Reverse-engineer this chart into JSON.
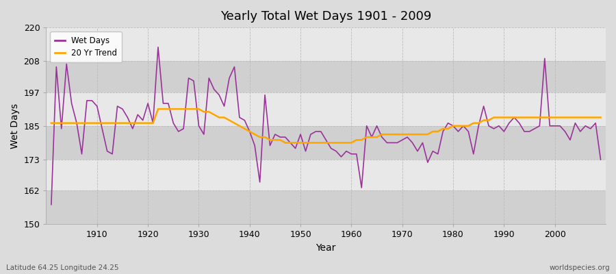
{
  "title": "Yearly Total Wet Days 1901 - 2009",
  "xlabel": "Year",
  "ylabel": "Wet Days",
  "lat_lon_label": "Latitude 64.25 Longitude 24.25",
  "watermark": "worldspecies.org",
  "ylim": [
    150,
    220
  ],
  "yticks": [
    150,
    162,
    173,
    185,
    197,
    208,
    220
  ],
  "years": [
    1901,
    1902,
    1903,
    1904,
    1905,
    1906,
    1907,
    1908,
    1909,
    1910,
    1911,
    1912,
    1913,
    1914,
    1915,
    1916,
    1917,
    1918,
    1919,
    1920,
    1921,
    1922,
    1923,
    1924,
    1925,
    1926,
    1927,
    1928,
    1929,
    1930,
    1931,
    1932,
    1933,
    1934,
    1935,
    1936,
    1937,
    1938,
    1939,
    1940,
    1941,
    1942,
    1943,
    1944,
    1945,
    1946,
    1947,
    1948,
    1949,
    1950,
    1951,
    1952,
    1953,
    1954,
    1955,
    1956,
    1957,
    1958,
    1959,
    1960,
    1961,
    1962,
    1963,
    1964,
    1965,
    1966,
    1967,
    1968,
    1969,
    1970,
    1971,
    1972,
    1973,
    1974,
    1975,
    1976,
    1977,
    1978,
    1979,
    1980,
    1981,
    1982,
    1983,
    1984,
    1985,
    1986,
    1987,
    1988,
    1989,
    1990,
    1991,
    1992,
    1993,
    1994,
    1995,
    1996,
    1997,
    1998,
    1999,
    2000,
    2001,
    2002,
    2003,
    2004,
    2005,
    2006,
    2007,
    2008,
    2009
  ],
  "wet_days": [
    157,
    206,
    184,
    207,
    193,
    186,
    175,
    194,
    194,
    192,
    184,
    176,
    175,
    192,
    191,
    188,
    184,
    189,
    187,
    193,
    186,
    213,
    193,
    193,
    186,
    183,
    184,
    202,
    201,
    185,
    182,
    202,
    198,
    196,
    192,
    202,
    206,
    188,
    187,
    183,
    178,
    165,
    196,
    178,
    182,
    181,
    181,
    179,
    177,
    182,
    176,
    182,
    183,
    183,
    180,
    177,
    176,
    174,
    176,
    175,
    175,
    163,
    185,
    181,
    185,
    181,
    179,
    179,
    179,
    180,
    181,
    179,
    176,
    179,
    172,
    176,
    175,
    183,
    186,
    185,
    183,
    185,
    183,
    175,
    185,
    192,
    185,
    184,
    185,
    183,
    186,
    188,
    186,
    183,
    183,
    184,
    185,
    209,
    185,
    185,
    185,
    183,
    180,
    186,
    183,
    185,
    184,
    186,
    173
  ],
  "trend": [
    186,
    186,
    186,
    186,
    186,
    186,
    186,
    186,
    186,
    186,
    186,
    186,
    186,
    186,
    186,
    186,
    186,
    186,
    186,
    186,
    186,
    191,
    191,
    191,
    191,
    191,
    191,
    191,
    191,
    191,
    190,
    190,
    189,
    188,
    188,
    187,
    186,
    185,
    184,
    183,
    182,
    181,
    181,
    180,
    180,
    180,
    179,
    179,
    179,
    179,
    179,
    179,
    179,
    179,
    179,
    179,
    179,
    179,
    179,
    179,
    180,
    180,
    181,
    181,
    181,
    182,
    182,
    182,
    182,
    182,
    182,
    182,
    182,
    182,
    182,
    183,
    183,
    184,
    184,
    185,
    185,
    185,
    185,
    186,
    186,
    187,
    187,
    188,
    188,
    188,
    188,
    188,
    188,
    188,
    188,
    188,
    188,
    188,
    188,
    188,
    188,
    188,
    188,
    188,
    188,
    188,
    188,
    188,
    188
  ],
  "line_color": "#993399",
  "trend_color": "#FFA500",
  "bg_color": "#DCDCDC",
  "bg_band_light": "#E8E8E8",
  "bg_band_dark": "#D0D0D0",
  "grid_color": "#BBBBBB",
  "legend_labels": [
    "Wet Days",
    "20 Yr Trend"
  ]
}
